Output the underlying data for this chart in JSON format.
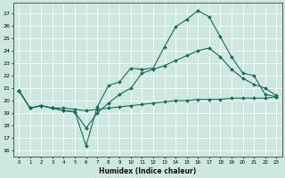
{
  "xlabel": "Humidex (Indice chaleur)",
  "background_color": "#cde8e0",
  "grid_color": "#ffffff",
  "line_color": "#1a6b5a",
  "xlim": [
    -0.5,
    23.5
  ],
  "ylim": [
    15.5,
    27.8
  ],
  "yticks": [
    16,
    17,
    18,
    19,
    20,
    21,
    22,
    23,
    24,
    25,
    26,
    27
  ],
  "xticks": [
    0,
    1,
    2,
    3,
    4,
    5,
    6,
    7,
    8,
    9,
    10,
    11,
    12,
    13,
    14,
    15,
    16,
    17,
    18,
    19,
    20,
    21,
    22,
    23
  ],
  "line1_x": [
    0,
    1,
    2,
    3,
    4,
    5,
    6,
    7,
    8,
    9,
    10,
    11,
    12,
    13,
    14,
    15,
    16,
    17,
    18,
    19,
    20,
    21,
    22,
    23
  ],
  "line1_y": [
    20.8,
    19.4,
    19.6,
    19.4,
    19.2,
    19.1,
    16.4,
    19.5,
    21.2,
    21.5,
    22.6,
    22.5,
    22.6,
    24.3,
    25.9,
    26.5,
    27.2,
    26.7,
    25.1,
    23.5,
    22.2,
    22.0,
    20.5,
    20.3
  ],
  "line2_x": [
    0,
    1,
    2,
    3,
    4,
    5,
    6,
    7,
    8,
    9,
    10,
    11,
    12,
    13,
    14,
    15,
    16,
    17,
    18,
    19,
    20,
    21,
    22,
    23
  ],
  "line2_y": [
    20.8,
    19.4,
    19.6,
    19.4,
    19.2,
    19.1,
    17.8,
    19.0,
    19.8,
    20.5,
    21.0,
    22.2,
    22.5,
    22.8,
    23.2,
    23.6,
    24.0,
    24.2,
    23.5,
    22.5,
    21.8,
    21.3,
    21.0,
    20.4
  ],
  "line3_x": [
    0,
    1,
    2,
    3,
    4,
    5,
    6,
    7,
    8,
    9,
    10,
    11,
    12,
    13,
    14,
    15,
    16,
    17,
    18,
    19,
    20,
    21,
    22,
    23
  ],
  "line3_y": [
    20.8,
    19.4,
    19.6,
    19.4,
    19.4,
    19.3,
    19.2,
    19.3,
    19.4,
    19.5,
    19.6,
    19.7,
    19.8,
    19.9,
    20.0,
    20.0,
    20.1,
    20.1,
    20.1,
    20.2,
    20.2,
    20.2,
    20.2,
    20.3
  ]
}
